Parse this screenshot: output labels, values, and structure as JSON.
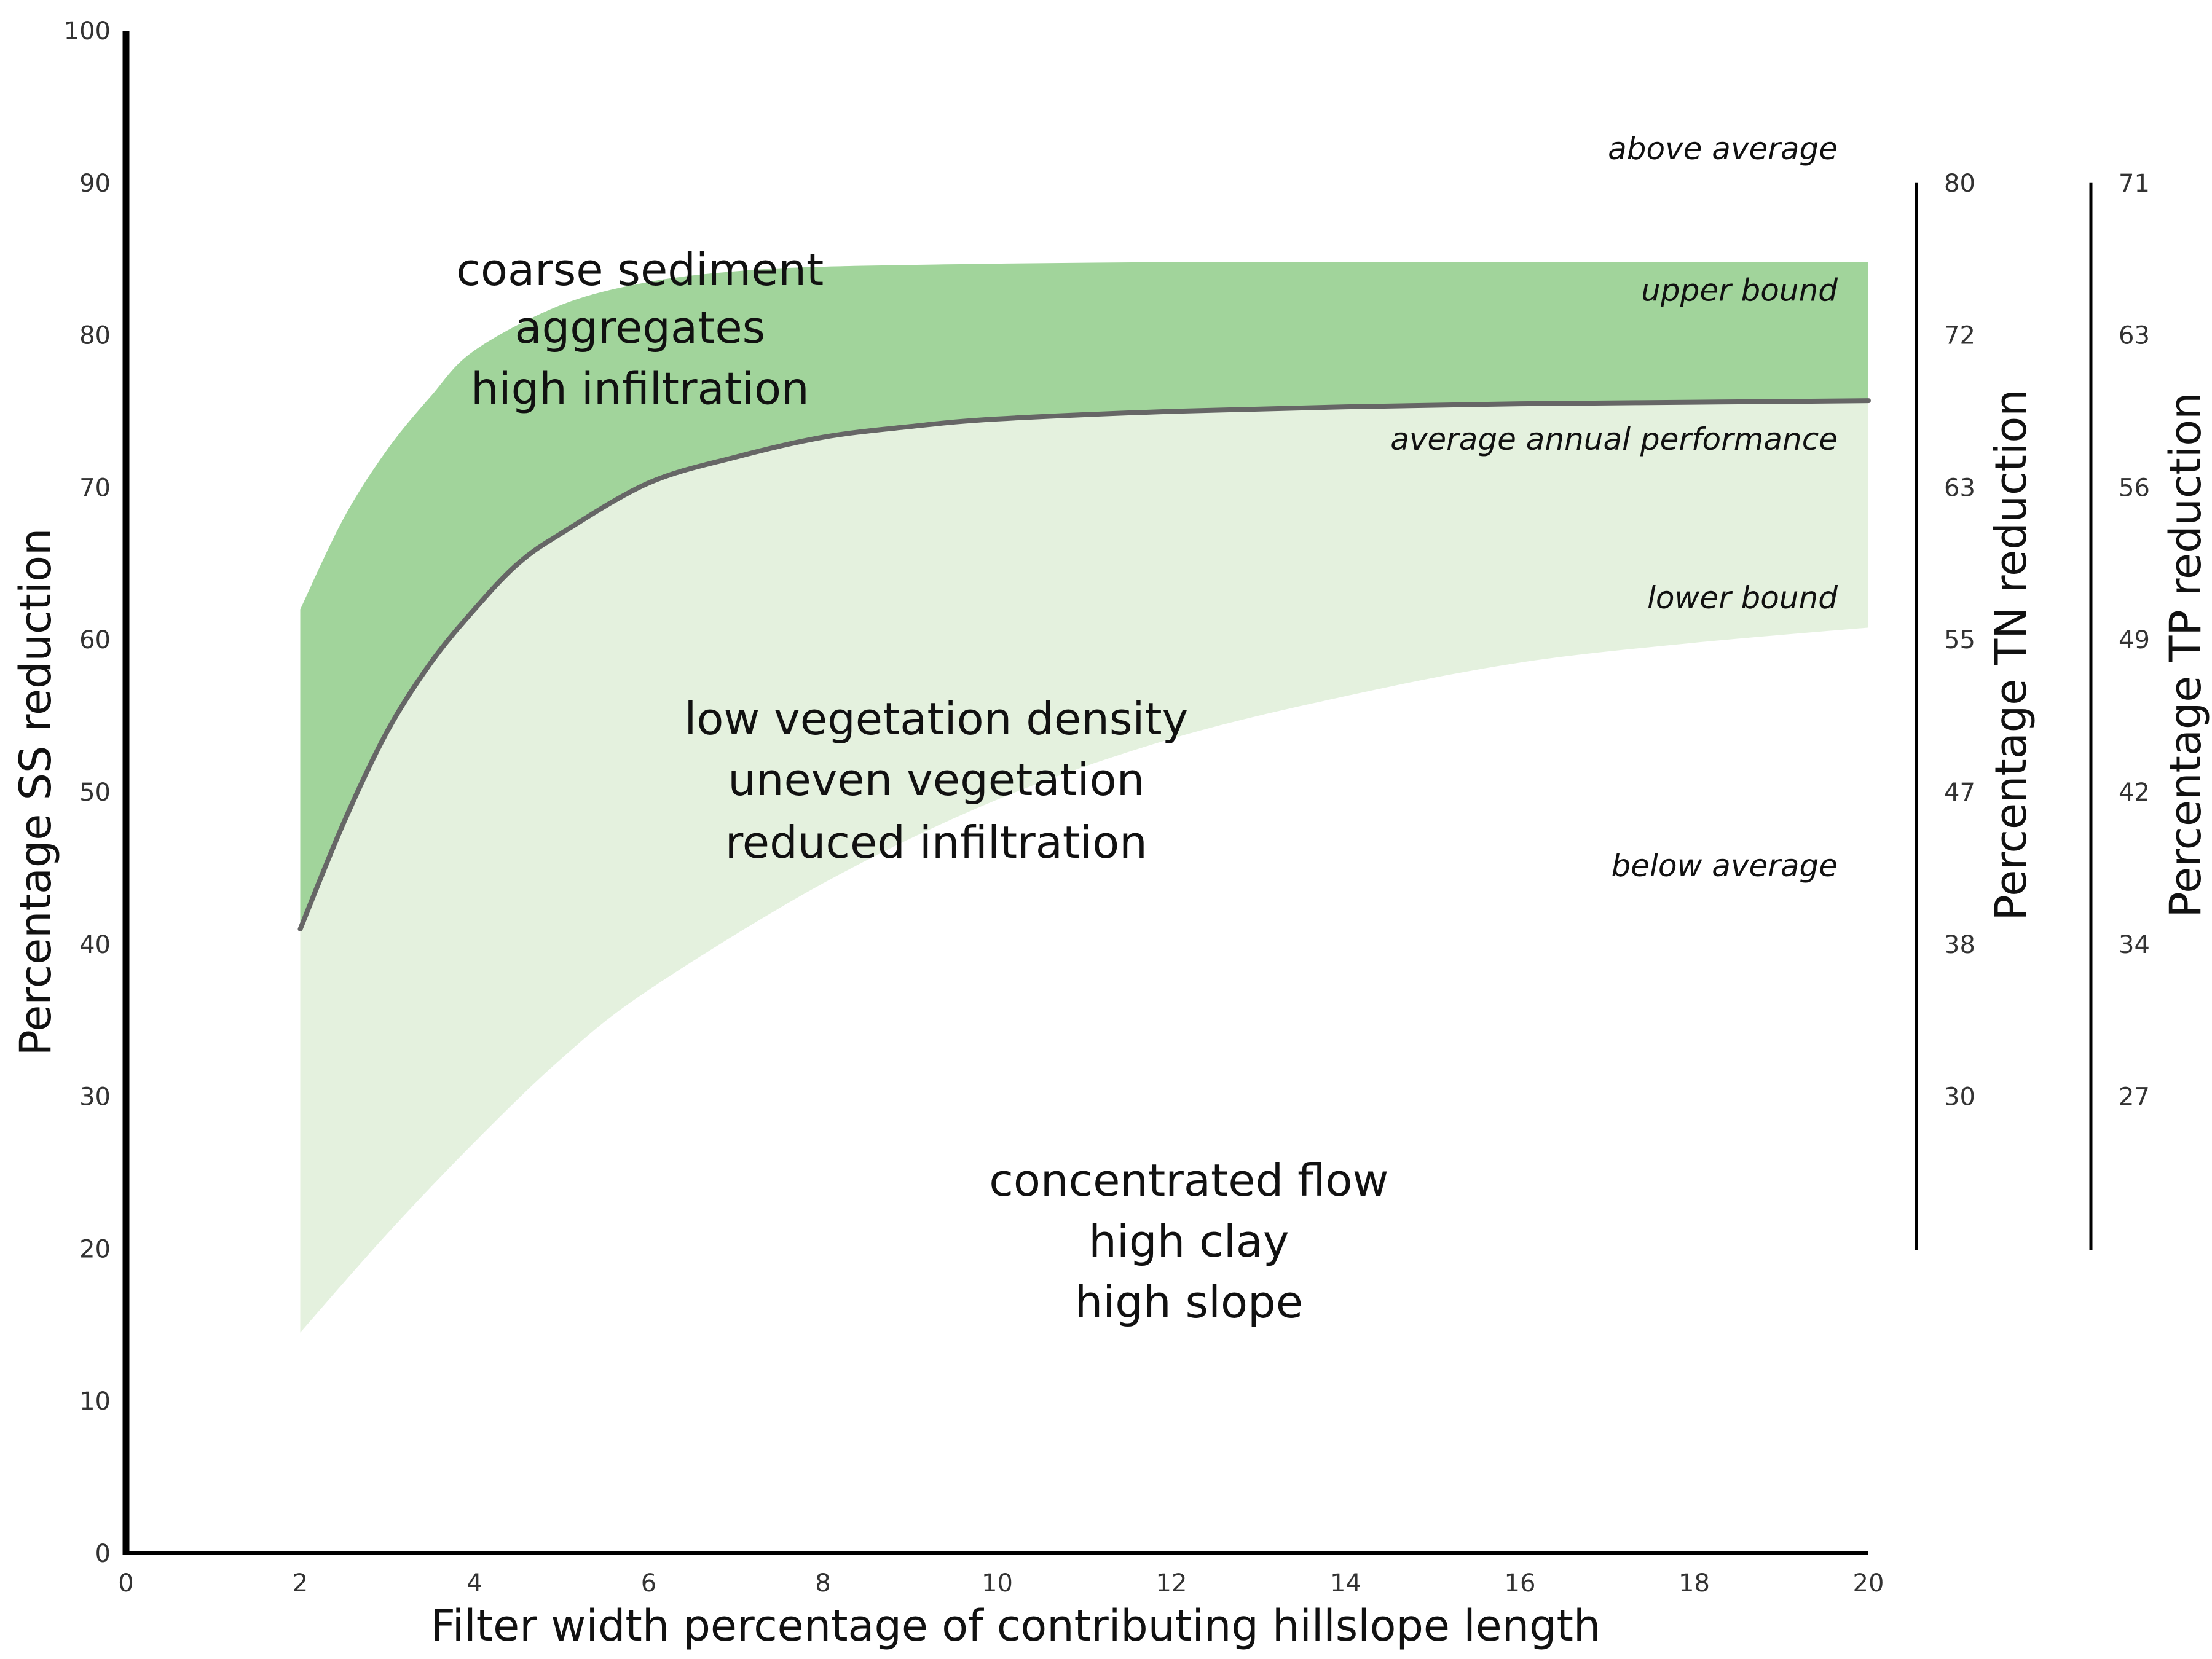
{
  "chart_data": {
    "type": "area",
    "xlabel": "Filter width percentage of contributing hillslope length",
    "ylabel": "Percentage SS reduction",
    "xlim": [
      0,
      20
    ],
    "ylim": [
      0,
      100
    ],
    "x_ticks": [
      "0",
      "2",
      "4",
      "6",
      "8",
      "10",
      "12",
      "14",
      "16",
      "18",
      "20"
    ],
    "y_ticks": [
      "0",
      "10",
      "20",
      "30",
      "40",
      "50",
      "60",
      "70",
      "80",
      "90",
      "100"
    ],
    "grid": false,
    "legend": "none",
    "series": [
      {
        "name": "upper bound",
        "x": [
          2,
          2.5,
          3,
          3.5,
          4,
          5,
          6,
          7,
          8,
          10,
          12,
          14,
          16,
          18,
          20
        ],
        "y": [
          62,
          68,
          72.5,
          76,
          79,
          82,
          83.5,
          84.2,
          84.5,
          84.7,
          84.8,
          84.8,
          84.8,
          84.8,
          84.8
        ]
      },
      {
        "name": "average annual performance",
        "x": [
          2,
          2.5,
          3,
          3.5,
          4,
          4.5,
          5,
          6,
          7,
          8,
          9,
          10,
          12,
          14,
          16,
          18,
          20
        ],
        "y": [
          41,
          48,
          54,
          58.5,
          62,
          65,
          67,
          70.3,
          72,
          73.3,
          74,
          74.5,
          75,
          75.3,
          75.5,
          75.6,
          75.7
        ]
      },
      {
        "name": "lower bound",
        "x": [
          2,
          3,
          4,
          5,
          6,
          8,
          10,
          12,
          14,
          16,
          18,
          20
        ],
        "y": [
          14.5,
          21,
          27,
          32.5,
          37,
          44,
          49.5,
          53.5,
          56.3,
          58.5,
          59.8,
          60.8
        ]
      }
    ],
    "band_labels": {
      "above": "above average",
      "upper": "upper bound",
      "average": "average annual performance",
      "lower": "lower bound",
      "below": "below average"
    },
    "zone_labels": {
      "upper_zone": [
        "coarse sediment",
        "aggregates",
        "high infiltration"
      ],
      "middle_zone": [
        "low vegetation density",
        "uneven vegetation",
        "reduced infiltration"
      ],
      "lower_zone": [
        "concentrated flow",
        "high clay",
        "high slope"
      ]
    },
    "secondary_axes": [
      {
        "title": "Percentage TN reduction",
        "ss_range": [
          30,
          90
        ],
        "ticks": [
          {
            "ss": 90,
            "label": "80"
          },
          {
            "ss": 80,
            "label": "72"
          },
          {
            "ss": 70,
            "label": "63"
          },
          {
            "ss": 60,
            "label": "55"
          },
          {
            "ss": 50,
            "label": "47"
          },
          {
            "ss": 40,
            "label": "38"
          },
          {
            "ss": 30,
            "label": "30"
          }
        ]
      },
      {
        "title": "Percentage TP reduction",
        "ss_range": [
          30,
          90
        ],
        "ticks": [
          {
            "ss": 90,
            "label": "71"
          },
          {
            "ss": 80,
            "label": "63"
          },
          {
            "ss": 70,
            "label": "56"
          },
          {
            "ss": 60,
            "label": "49"
          },
          {
            "ss": 50,
            "label": "42"
          },
          {
            "ss": 40,
            "label": "34"
          },
          {
            "ss": 30,
            "label": "27"
          }
        ]
      }
    ],
    "colors": {
      "upper_band": "#a1d49b",
      "lower_band": "#e4f1de",
      "average_line": "#666666",
      "axis": "#000000"
    }
  }
}
